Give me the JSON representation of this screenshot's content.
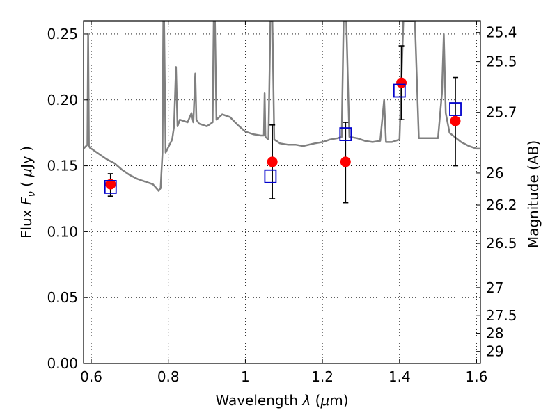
{
  "chart_data": {
    "type": "scatter",
    "title": "",
    "xlabel": "Wavelength  λ (μm)",
    "ylabel": "Flux  F_ν  ( μJy )",
    "y2label": "Magnitude (AB)",
    "xlim": [
      0.58,
      1.61
    ],
    "ylim": [
      0.0,
      0.26
    ],
    "grid": true,
    "x_ticks": [
      {
        "value": 0.6,
        "label": "0.6"
      },
      {
        "value": 0.8,
        "label": "0.8"
      },
      {
        "value": 1.0,
        "label": "1"
      },
      {
        "value": 1.2,
        "label": "1.2"
      },
      {
        "value": 1.4,
        "label": "1.4"
      },
      {
        "value": 1.6,
        "label": "1.6"
      }
    ],
    "y_ticks": [
      {
        "value": 0.0,
        "label": "0.00"
      },
      {
        "value": 0.05,
        "label": "0.05"
      },
      {
        "value": 0.1,
        "label": "0.10"
      },
      {
        "value": 0.15,
        "label": "0.15"
      },
      {
        "value": 0.2,
        "label": "0.20"
      },
      {
        "value": 0.25,
        "label": "0.25"
      }
    ],
    "y2_ticks": [
      {
        "label": "25.4",
        "value": 25.4
      },
      {
        "label": "25.5",
        "value": 25.5
      },
      {
        "label": "25.7",
        "value": 25.7
      },
      {
        "label": "26",
        "value": 26.0
      },
      {
        "label": "26.2",
        "value": 26.2
      },
      {
        "label": "26.5",
        "value": 26.5
      },
      {
        "label": "27",
        "value": 27.0
      },
      {
        "label": "27.5",
        "value": 27.5
      },
      {
        "label": "28",
        "value": 28.0
      },
      {
        "label": "29",
        "value": 29.0
      }
    ],
    "model_spectrum": {
      "color": "#808080",
      "points": [
        [
          0.58,
          0.163
        ],
        [
          0.59,
          0.166
        ],
        [
          0.592,
          0.25
        ],
        [
          0.594,
          0.165
        ],
        [
          0.598,
          0.163
        ],
        [
          0.6,
          0.163
        ],
        [
          0.62,
          0.159
        ],
        [
          0.64,
          0.155
        ],
        [
          0.66,
          0.152
        ],
        [
          0.68,
          0.147
        ],
        [
          0.7,
          0.143
        ],
        [
          0.72,
          0.14
        ],
        [
          0.74,
          0.138
        ],
        [
          0.76,
          0.136
        ],
        [
          0.775,
          0.131
        ],
        [
          0.78,
          0.133
        ],
        [
          0.785,
          0.16
        ],
        [
          0.787,
          0.26
        ],
        [
          0.789,
          0.26
        ],
        [
          0.793,
          0.16
        ],
        [
          0.8,
          0.164
        ],
        [
          0.81,
          0.17
        ],
        [
          0.815,
          0.18
        ],
        [
          0.82,
          0.225
        ],
        [
          0.824,
          0.18
        ],
        [
          0.83,
          0.185
        ],
        [
          0.85,
          0.183
        ],
        [
          0.86,
          0.19
        ],
        [
          0.865,
          0.183
        ],
        [
          0.87,
          0.22
        ],
        [
          0.873,
          0.185
        ],
        [
          0.88,
          0.182
        ],
        [
          0.9,
          0.18
        ],
        [
          0.915,
          0.183
        ],
        [
          0.918,
          0.26
        ],
        [
          0.921,
          0.26
        ],
        [
          0.925,
          0.185
        ],
        [
          0.94,
          0.189
        ],
        [
          0.96,
          0.187
        ],
        [
          0.98,
          0.181
        ],
        [
          1.0,
          0.176
        ],
        [
          1.02,
          0.174
        ],
        [
          1.04,
          0.173
        ],
        [
          1.048,
          0.173
        ],
        [
          1.05,
          0.205
        ],
        [
          1.052,
          0.172
        ],
        [
          1.06,
          0.17
        ],
        [
          1.065,
          0.26
        ],
        [
          1.07,
          0.26
        ],
        [
          1.075,
          0.17
        ],
        [
          1.09,
          0.167
        ],
        [
          1.11,
          0.166
        ],
        [
          1.13,
          0.166
        ],
        [
          1.15,
          0.165
        ],
        [
          1.18,
          0.167
        ],
        [
          1.2,
          0.168
        ],
        [
          1.22,
          0.17
        ],
        [
          1.24,
          0.171
        ],
        [
          1.25,
          0.172
        ],
        [
          1.255,
          0.26
        ],
        [
          1.262,
          0.26
        ],
        [
          1.27,
          0.172
        ],
        [
          1.29,
          0.171
        ],
        [
          1.31,
          0.169
        ],
        [
          1.33,
          0.168
        ],
        [
          1.35,
          0.169
        ],
        [
          1.36,
          0.2
        ],
        [
          1.365,
          0.168
        ],
        [
          1.38,
          0.168
        ],
        [
          1.4,
          0.17
        ],
        [
          1.41,
          0.26
        ],
        [
          1.44,
          0.26
        ],
        [
          1.45,
          0.171
        ],
        [
          1.47,
          0.171
        ],
        [
          1.49,
          0.171
        ],
        [
          1.5,
          0.171
        ],
        [
          1.51,
          0.205
        ],
        [
          1.515,
          0.25
        ],
        [
          1.52,
          0.19
        ],
        [
          1.53,
          0.175
        ],
        [
          1.56,
          0.168
        ],
        [
          1.58,
          0.165
        ],
        [
          1.6,
          0.163
        ],
        [
          1.61,
          0.163
        ]
      ]
    },
    "observed": {
      "color": "#ff0000",
      "points": [
        {
          "x": 0.65,
          "y": 0.136,
          "err_low": 0.127,
          "err_high": 0.144
        },
        {
          "x": 1.07,
          "y": 0.153,
          "err_low": 0.125,
          "err_high": 0.181
        },
        {
          "x": 1.26,
          "y": 0.153,
          "err_low": 0.122,
          "err_high": 0.183
        },
        {
          "x": 1.405,
          "y": 0.213,
          "err_low": 0.185,
          "err_high": 0.241
        },
        {
          "x": 1.545,
          "y": 0.184,
          "err_low": 0.15,
          "err_high": 0.217
        }
      ]
    },
    "model_photometry": {
      "color": "#0000cc",
      "points": [
        {
          "x": 0.65,
          "y": 0.134
        },
        {
          "x": 1.065,
          "y": 0.142
        },
        {
          "x": 1.26,
          "y": 0.174
        },
        {
          "x": 1.4,
          "y": 0.207
        },
        {
          "x": 1.545,
          "y": 0.193
        }
      ]
    }
  }
}
